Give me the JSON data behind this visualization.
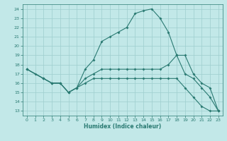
{
  "xlabel": "Humidex (Indice chaleur)",
  "bg_color": "#c2e8e8",
  "grid_color": "#9ecece",
  "line_color": "#2a7a72",
  "xlim": [
    -0.5,
    23.5
  ],
  "ylim": [
    12.5,
    24.5
  ],
  "xticks": [
    0,
    1,
    2,
    3,
    4,
    5,
    6,
    7,
    8,
    9,
    10,
    11,
    12,
    13,
    14,
    15,
    16,
    17,
    18,
    19,
    20,
    21,
    22,
    23
  ],
  "yticks": [
    13,
    14,
    15,
    16,
    17,
    18,
    19,
    20,
    21,
    22,
    23,
    24
  ],
  "curve1_x": [
    0,
    1,
    2,
    3,
    4,
    5,
    6,
    7,
    8,
    9,
    10,
    11,
    12,
    13,
    14,
    15,
    16,
    17,
    18,
    19,
    20,
    21,
    22,
    23
  ],
  "curve1_y": [
    17.5,
    17.0,
    16.5,
    16.0,
    16.0,
    15.0,
    15.5,
    17.5,
    18.5,
    20.5,
    21.0,
    21.5,
    22.0,
    23.5,
    23.8,
    24.0,
    23.0,
    21.5,
    19.0,
    17.0,
    16.5,
    15.5,
    14.5,
    13.0
  ],
  "curve2_x": [
    0,
    2,
    3,
    4,
    5,
    6,
    7,
    8,
    9,
    10,
    11,
    12,
    13,
    14,
    15,
    16,
    17,
    18,
    19,
    20,
    21,
    22,
    23
  ],
  "curve2_y": [
    17.5,
    16.5,
    16.0,
    16.0,
    15.0,
    15.5,
    16.5,
    17.0,
    17.5,
    17.5,
    17.5,
    17.5,
    17.5,
    17.5,
    17.5,
    17.5,
    18.0,
    19.0,
    19.0,
    17.0,
    16.0,
    15.5,
    13.0
  ],
  "curve3_x": [
    0,
    2,
    3,
    4,
    5,
    6,
    7,
    8,
    9,
    10,
    11,
    12,
    13,
    14,
    15,
    16,
    17,
    18,
    19,
    20,
    21,
    22,
    23
  ],
  "curve3_y": [
    17.5,
    16.5,
    16.0,
    16.0,
    15.0,
    15.5,
    16.0,
    16.5,
    16.5,
    16.5,
    16.5,
    16.5,
    16.5,
    16.5,
    16.5,
    16.5,
    16.5,
    16.5,
    15.5,
    14.5,
    13.5,
    13.0,
    13.0
  ]
}
